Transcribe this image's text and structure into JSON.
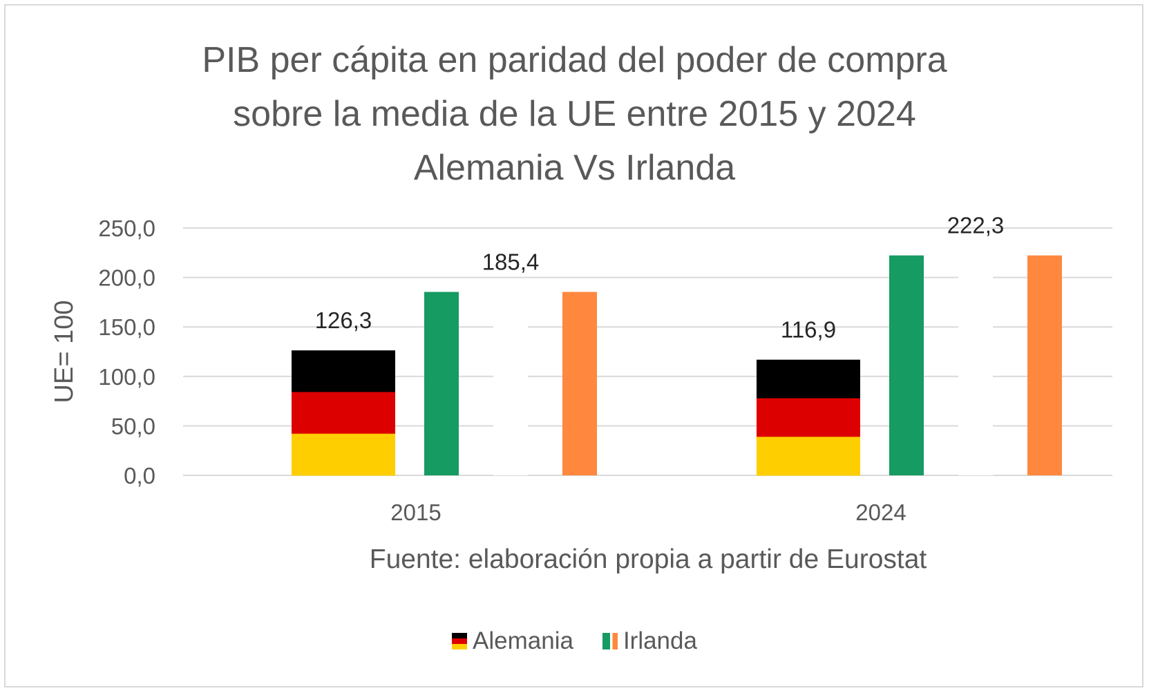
{
  "chart_data": {
    "type": "bar",
    "title": [
      "PIB per cápita en paridad del poder de compra",
      "sobre la media de la UE entre 2015 y 2024",
      "Alemania Vs Irlanda"
    ],
    "categories": [
      "2015",
      "2024"
    ],
    "series": [
      {
        "name": "Alemania",
        "values": [
          126.3,
          116.9
        ],
        "labels": [
          "126,3",
          "116,9"
        ],
        "colors": [
          "#000000",
          "#dd0000",
          "#ffce00"
        ]
      },
      {
        "name": "Irlanda",
        "values": [
          185.4,
          222.3
        ],
        "labels": [
          "185,4",
          "222,3"
        ],
        "colors": [
          "#169b62",
          "#ffffff",
          "#ff883e"
        ]
      }
    ],
    "ylabel": "UE= 100",
    "xlabel": "Fuente: elaboración propia a partir de Eurostat",
    "ylim": [
      0,
      250
    ],
    "yticks": [
      0,
      50,
      100,
      150,
      200,
      250
    ],
    "ytick_labels": [
      "0,0",
      "50,0",
      "100,0",
      "150,0",
      "200,0",
      "250,0"
    ],
    "grid": true,
    "legend_position": "bottom"
  }
}
